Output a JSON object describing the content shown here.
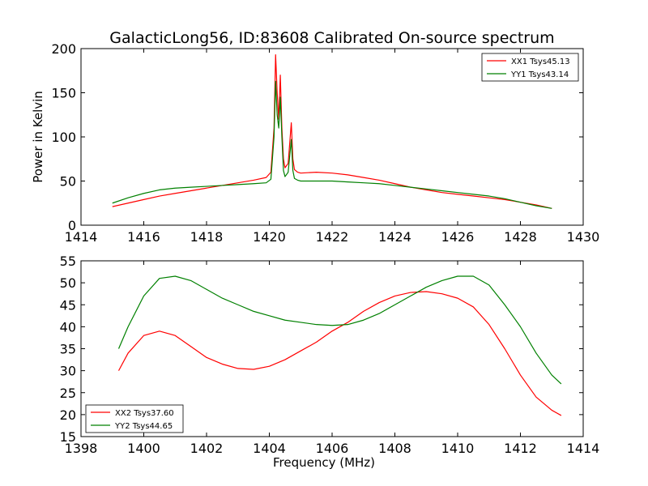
{
  "figure": {
    "title": "GalacticLong56, ID:83608 Calibrated On-source spectrum"
  },
  "chart_data": [
    {
      "type": "line",
      "ylabel": "Power in Kelvin",
      "xlabel": "",
      "xlim": [
        1414,
        1430
      ],
      "ylim": [
        0,
        200
      ],
      "xticks": [
        1414,
        1416,
        1418,
        1420,
        1422,
        1424,
        1426,
        1428,
        1430
      ],
      "yticks": [
        0,
        50,
        100,
        150,
        200
      ],
      "legend": "top-right",
      "series": [
        {
          "name": "XX1 Tsys45.13",
          "color": "#ff0000",
          "x": [
            1415.0,
            1415.5,
            1416.0,
            1416.5,
            1417.0,
            1417.5,
            1418.0,
            1418.5,
            1419.0,
            1419.5,
            1419.9,
            1420.05,
            1420.15,
            1420.2,
            1420.25,
            1420.3,
            1420.35,
            1420.4,
            1420.45,
            1420.5,
            1420.6,
            1420.7,
            1420.75,
            1420.8,
            1420.9,
            1421.0,
            1421.5,
            1422.0,
            1422.5,
            1423.0,
            1423.5,
            1424.0,
            1424.5,
            1425.0,
            1425.5,
            1426.0,
            1426.5,
            1427.0,
            1427.5,
            1428.0,
            1428.5,
            1429.0
          ],
          "values": [
            21,
            25,
            29,
            33,
            36,
            39,
            42,
            45,
            48,
            51,
            54,
            60,
            110,
            193,
            150,
            120,
            170,
            110,
            75,
            65,
            70,
            116,
            75,
            63,
            60,
            59,
            60,
            59,
            57,
            54,
            51,
            47,
            43,
            40,
            37,
            35,
            33,
            31,
            29,
            26,
            23,
            19
          ]
        },
        {
          "name": "YY1 Tsys43.14",
          "color": "#008000",
          "x": [
            1415.0,
            1415.5,
            1416.0,
            1416.5,
            1417.0,
            1417.5,
            1418.0,
            1418.5,
            1419.0,
            1419.5,
            1419.9,
            1420.05,
            1420.15,
            1420.2,
            1420.25,
            1420.3,
            1420.35,
            1420.4,
            1420.45,
            1420.5,
            1420.6,
            1420.7,
            1420.75,
            1420.8,
            1420.9,
            1421.0,
            1421.5,
            1422.0,
            1422.5,
            1423.0,
            1423.5,
            1424.0,
            1424.5,
            1425.0,
            1425.5,
            1426.0,
            1426.5,
            1427.0,
            1427.5,
            1428.0,
            1428.5,
            1429.0
          ],
          "values": [
            25,
            31,
            36,
            40,
            42,
            43,
            44,
            45,
            46,
            47,
            48,
            52,
            100,
            163,
            125,
            110,
            145,
            100,
            62,
            55,
            60,
            97,
            62,
            53,
            51,
            50,
            50,
            50,
            49,
            48,
            47,
            45,
            43,
            41,
            39,
            37,
            35,
            33,
            30,
            26,
            22,
            19
          ]
        }
      ]
    },
    {
      "type": "line",
      "ylabel": "",
      "xlabel": "Frequency (MHz)",
      "xlim": [
        1398,
        1414
      ],
      "ylim": [
        15,
        55
      ],
      "xticks": [
        1398,
        1400,
        1402,
        1404,
        1406,
        1408,
        1410,
        1412,
        1414
      ],
      "yticks": [
        15,
        20,
        25,
        30,
        35,
        40,
        45,
        50,
        55
      ],
      "legend": "bottom-left",
      "series": [
        {
          "name": "XX2 Tsys37.60",
          "color": "#ff0000",
          "x": [
            1399.2,
            1399.5,
            1400.0,
            1400.5,
            1401.0,
            1401.5,
            1402.0,
            1402.5,
            1403.0,
            1403.5,
            1404.0,
            1404.5,
            1405.0,
            1405.5,
            1406.0,
            1406.5,
            1407.0,
            1407.5,
            1408.0,
            1408.5,
            1409.0,
            1409.5,
            1410.0,
            1410.5,
            1411.0,
            1411.5,
            1412.0,
            1412.5,
            1413.0,
            1413.3
          ],
          "values": [
            30,
            34,
            38,
            39,
            38,
            35.5,
            33,
            31.5,
            30.5,
            30.3,
            31,
            32.5,
            34.5,
            36.5,
            39,
            41,
            43.5,
            45.5,
            47,
            47.8,
            48,
            47.5,
            46.5,
            44.5,
            40.5,
            35,
            29,
            24,
            21,
            19.8
          ]
        },
        {
          "name": "YY2 Tsys44.65",
          "color": "#008000",
          "x": [
            1399.2,
            1399.5,
            1400.0,
            1400.5,
            1401.0,
            1401.5,
            1402.0,
            1402.5,
            1403.0,
            1403.5,
            1404.0,
            1404.5,
            1405.0,
            1405.5,
            1406.0,
            1406.5,
            1407.0,
            1407.5,
            1408.0,
            1408.5,
            1409.0,
            1409.5,
            1410.0,
            1410.5,
            1411.0,
            1411.5,
            1412.0,
            1412.5,
            1413.0,
            1413.3
          ],
          "values": [
            35,
            40,
            47,
            51,
            51.5,
            50.5,
            48.5,
            46.5,
            45,
            43.5,
            42.5,
            41.5,
            41,
            40.5,
            40.3,
            40.5,
            41.5,
            43,
            45,
            47,
            49,
            50.5,
            51.5,
            51.5,
            49.5,
            45,
            40,
            34,
            29,
            27
          ]
        }
      ]
    }
  ]
}
